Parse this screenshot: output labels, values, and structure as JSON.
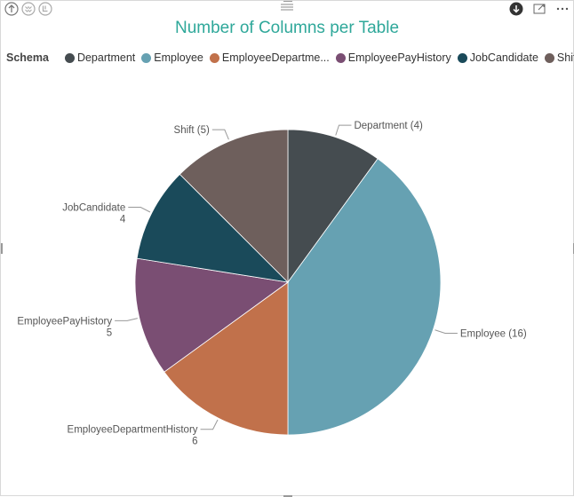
{
  "chart_data": {
    "type": "pie",
    "title": "Number of Columns per Table",
    "legend_title": "Schema",
    "legend_position": "top-left",
    "slices": [
      {
        "name": "Department",
        "legend_label": "Department",
        "value": 4,
        "color": "#454c50",
        "label_lines": [
          "Department (4)"
        ]
      },
      {
        "name": "Employee",
        "legend_label": "Employee",
        "value": 16,
        "color": "#66a1b2",
        "label_lines": [
          "Employee (16)"
        ]
      },
      {
        "name": "EmployeeDepartmentHistory",
        "legend_label": "EmployeeDepartme...",
        "value": 6,
        "color": "#c1714b",
        "label_lines": [
          "EmployeeDepartmentHistory",
          "6"
        ]
      },
      {
        "name": "EmployeePayHistory",
        "legend_label": "EmployeePayHistory",
        "value": 5,
        "color": "#7a4e73",
        "label_lines": [
          "EmployeePayHistory",
          "5"
        ]
      },
      {
        "name": "JobCandidate",
        "legend_label": "JobCandidate",
        "value": 4,
        "color": "#1a4a5a",
        "label_lines": [
          "JobCandidate",
          "4"
        ]
      },
      {
        "name": "Shift",
        "legend_label": "Shift",
        "value": 5,
        "color": "#6e5f5c",
        "label_lines": [
          "Shift (5)"
        ]
      }
    ]
  },
  "toolbar": {
    "icons_left": [
      "drill-up-icon",
      "expand-all-down-icon",
      "drill-mode-icon"
    ],
    "icons_right": [
      "drill-down-toggle-icon",
      "focus-mode-icon",
      "more-options-icon"
    ]
  }
}
